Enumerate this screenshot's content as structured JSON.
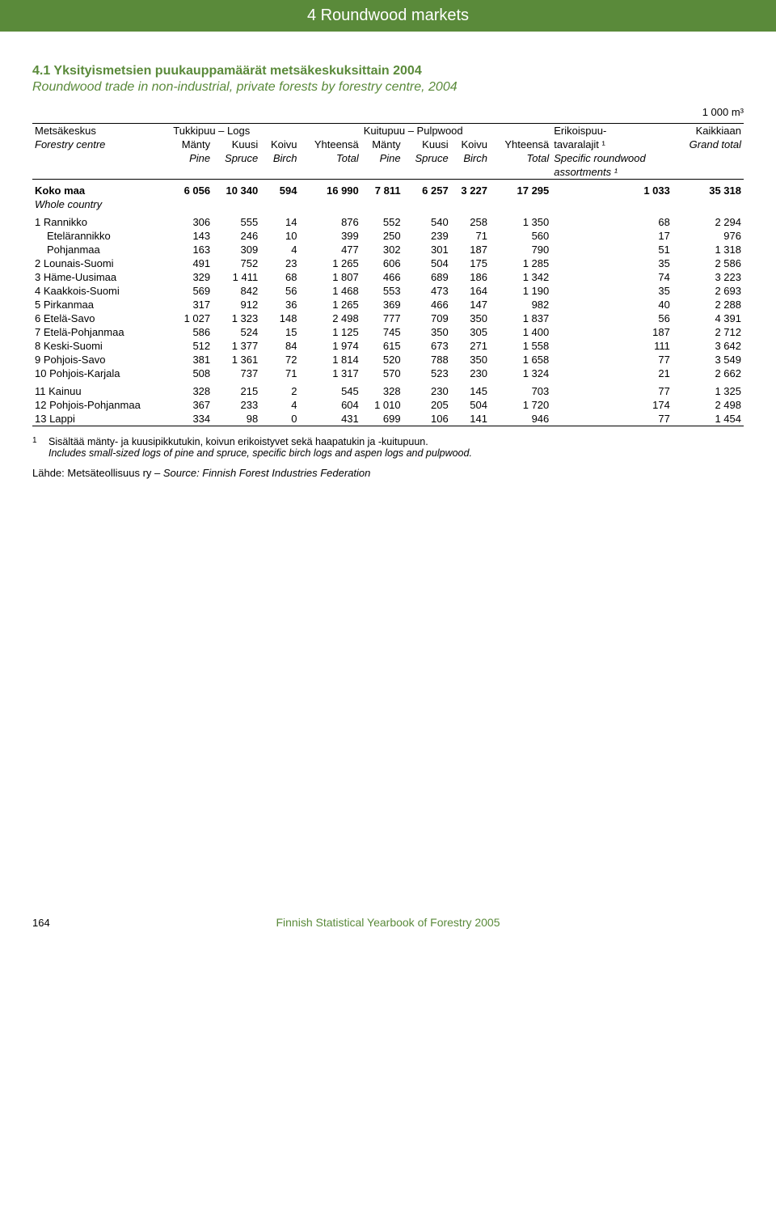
{
  "header": {
    "title": "4 Roundwood markets"
  },
  "title": {
    "fi": "4.1 Yksityismetsien puukauppamäärät metsäkeskuksittain 2004",
    "en": "Roundwood trade in non-industrial, private forests by forestry centre, 2004"
  },
  "unit": "1 000 m³",
  "table": {
    "colors": {
      "accent": "#5a8a3a",
      "text": "#000000",
      "background": "#ffffff",
      "rule": "#000000"
    },
    "font_size_pt": 10,
    "header": {
      "row1": {
        "c0": "Metsäkeskus",
        "logs_group": "Tukkipuu – Logs",
        "pulp_group": "Kuitupuu – Pulpwood",
        "spec": "Erikoispuu-",
        "total": "Kaikkiaan"
      },
      "row2": {
        "c0": "Forestry centre",
        "c1": "Mänty",
        "c2": "Kuusi",
        "c3": "Koivu",
        "c4": "Yhteensä",
        "c5": "Mänty",
        "c6": "Kuusi",
        "c7": "Koivu",
        "c8": "Yhteensä",
        "spec": "tavaralajit ¹",
        "total": "Grand total"
      },
      "row3": {
        "c1": "Pine",
        "c2": "Spruce",
        "c3": "Birch",
        "c4": "Total",
        "c5": "Pine",
        "c6": "Spruce",
        "c7": "Birch",
        "c8": "Total",
        "spec": "Specific roundwood"
      },
      "row4": {
        "spec": "assortments ¹"
      }
    },
    "total_row": {
      "label_fi": "Koko maa",
      "label_en": "Whole country",
      "v": [
        "6 056",
        "10 340",
        "594",
        "16 990",
        "7 811",
        "6 257",
        "3 227",
        "17 295",
        "1 033",
        "35 318"
      ]
    },
    "groups": [
      [
        {
          "label": "1 Rannikko",
          "v": [
            "306",
            "555",
            "14",
            "876",
            "552",
            "540",
            "258",
            "1 350",
            "68",
            "2 294"
          ]
        },
        {
          "label": "   Etelärannikko",
          "v": [
            "143",
            "246",
            "10",
            "399",
            "250",
            "239",
            "71",
            "560",
            "17",
            "976"
          ],
          "indent": true
        },
        {
          "label": "   Pohjanmaa",
          "v": [
            "163",
            "309",
            "4",
            "477",
            "302",
            "301",
            "187",
            "790",
            "51",
            "1 318"
          ],
          "indent": true
        },
        {
          "label": "2 Lounais-Suomi",
          "v": [
            "491",
            "752",
            "23",
            "1 265",
            "606",
            "504",
            "175",
            "1 285",
            "35",
            "2 586"
          ]
        },
        {
          "label": "3 Häme-Uusimaa",
          "v": [
            "329",
            "1 411",
            "68",
            "1 807",
            "466",
            "689",
            "186",
            "1 342",
            "74",
            "3 223"
          ]
        },
        {
          "label": "4 Kaakkois-Suomi",
          "v": [
            "569",
            "842",
            "56",
            "1 468",
            "553",
            "473",
            "164",
            "1 190",
            "35",
            "2 693"
          ]
        },
        {
          "label": "5 Pirkanmaa",
          "v": [
            "317",
            "912",
            "36",
            "1 265",
            "369",
            "466",
            "147",
            "982",
            "40",
            "2 288"
          ]
        },
        {
          "label": "6 Etelä-Savo",
          "v": [
            "1 027",
            "1 323",
            "148",
            "2 498",
            "777",
            "709",
            "350",
            "1 837",
            "56",
            "4 391"
          ]
        },
        {
          "label": "7 Etelä-Pohjanmaa",
          "v": [
            "586",
            "524",
            "15",
            "1 125",
            "745",
            "350",
            "305",
            "1 400",
            "187",
            "2 712"
          ]
        },
        {
          "label": "8 Keski-Suomi",
          "v": [
            "512",
            "1 377",
            "84",
            "1 974",
            "615",
            "673",
            "271",
            "1 558",
            "111",
            "3 642"
          ]
        },
        {
          "label": "9 Pohjois-Savo",
          "v": [
            "381",
            "1 361",
            "72",
            "1 814",
            "520",
            "788",
            "350",
            "1 658",
            "77",
            "3 549"
          ]
        },
        {
          "label": "10 Pohjois-Karjala",
          "v": [
            "508",
            "737",
            "71",
            "1 317",
            "570",
            "523",
            "230",
            "1 324",
            "21",
            "2 662"
          ]
        }
      ],
      [
        {
          "label": "11 Kainuu",
          "v": [
            "328",
            "215",
            "2",
            "545",
            "328",
            "230",
            "145",
            "703",
            "77",
            "1 325"
          ]
        },
        {
          "label": "12 Pohjois-Pohjanmaa",
          "v": [
            "367",
            "233",
            "4",
            "604",
            "1 010",
            "205",
            "504",
            "1 720",
            "174",
            "2 498"
          ]
        },
        {
          "label": "13 Lappi",
          "v": [
            "334",
            "98",
            "0",
            "431",
            "699",
            "106",
            "141",
            "946",
            "77",
            "1 454"
          ]
        }
      ]
    ]
  },
  "footnote": {
    "sup": "1",
    "fi": "Sisältää mänty- ja kuusipikkutukin, koivun erikoistyvet sekä haapatukin ja -kuitupuun.",
    "en": "Includes small-sized logs of pine and spruce, specific birch logs and aspen logs and pulpwood."
  },
  "source": {
    "fi": "Lähde: Metsäteollisuus ry – ",
    "en": "Source: Finnish Forest Industries Federation"
  },
  "footer": {
    "page": "164",
    "publication": "Finnish Statistical Yearbook of Forestry 2005"
  }
}
